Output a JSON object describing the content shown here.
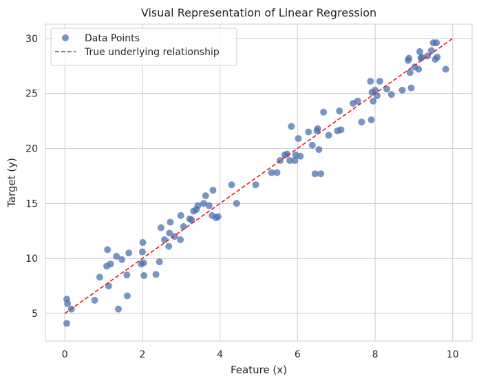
{
  "chart_data": {
    "type": "scatter",
    "title": "Visual Representation of Linear Regression",
    "xlabel": "Feature (x)",
    "ylabel": "Target (y)",
    "xlim": [
      -0.5,
      10.5
    ],
    "ylim": [
      2.5,
      31.3
    ],
    "xticks": [
      0,
      2,
      4,
      6,
      8,
      10
    ],
    "yticks": [
      5,
      10,
      15,
      20,
      25,
      30
    ],
    "grid": true,
    "legend_position": "top-left",
    "series": [
      {
        "name": "Data Points",
        "kind": "scatter",
        "color": "#4c72b0",
        "points": [
          [
            0.05,
            4.1
          ],
          [
            0.05,
            6.3
          ],
          [
            0.07,
            5.9
          ],
          [
            0.17,
            5.4
          ],
          [
            0.77,
            6.2
          ],
          [
            0.9,
            8.3
          ],
          [
            1.08,
            9.3
          ],
          [
            1.1,
            10.8
          ],
          [
            1.13,
            7.5
          ],
          [
            1.18,
            9.5
          ],
          [
            1.33,
            10.2
          ],
          [
            1.38,
            5.4
          ],
          [
            1.47,
            9.9
          ],
          [
            1.6,
            8.5
          ],
          [
            1.61,
            6.6
          ],
          [
            1.65,
            10.5
          ],
          [
            1.97,
            9.5
          ],
          [
            2.0,
            10.6
          ],
          [
            2.01,
            11.45
          ],
          [
            2.03,
            9.6
          ],
          [
            2.04,
            8.45
          ],
          [
            2.35,
            8.55
          ],
          [
            2.44,
            9.7
          ],
          [
            2.48,
            12.8
          ],
          [
            2.57,
            11.7
          ],
          [
            2.68,
            11.1
          ],
          [
            2.7,
            12.3
          ],
          [
            2.72,
            13.3
          ],
          [
            2.83,
            12.0
          ],
          [
            2.98,
            11.7
          ],
          [
            2.99,
            13.9
          ],
          [
            3.06,
            12.9
          ],
          [
            3.22,
            13.6
          ],
          [
            3.27,
            13.5
          ],
          [
            3.32,
            14.3
          ],
          [
            3.39,
            14.45
          ],
          [
            3.43,
            14.8
          ],
          [
            3.58,
            15.0
          ],
          [
            3.63,
            15.7
          ],
          [
            3.72,
            14.8
          ],
          [
            3.8,
            13.9
          ],
          [
            3.82,
            16.2
          ],
          [
            3.9,
            13.7
          ],
          [
            3.95,
            13.8
          ],
          [
            4.3,
            16.7
          ],
          [
            4.43,
            15.0
          ],
          [
            4.92,
            16.7
          ],
          [
            5.33,
            17.8
          ],
          [
            5.47,
            17.8
          ],
          [
            5.55,
            18.9
          ],
          [
            5.67,
            19.4
          ],
          [
            5.73,
            19.5
          ],
          [
            5.8,
            18.9
          ],
          [
            5.84,
            22.0
          ],
          [
            5.93,
            18.9
          ],
          [
            5.95,
            19.4
          ],
          [
            6.02,
            20.9
          ],
          [
            6.07,
            19.3
          ],
          [
            6.28,
            21.5
          ],
          [
            6.38,
            20.3
          ],
          [
            6.45,
            17.7
          ],
          [
            6.5,
            21.6
          ],
          [
            6.52,
            21.8
          ],
          [
            6.55,
            19.9
          ],
          [
            6.6,
            17.7
          ],
          [
            6.67,
            23.3
          ],
          [
            6.8,
            21.2
          ],
          [
            7.03,
            21.6
          ],
          [
            7.08,
            23.4
          ],
          [
            7.12,
            21.7
          ],
          [
            7.43,
            24.1
          ],
          [
            7.55,
            24.3
          ],
          [
            7.65,
            22.4
          ],
          [
            7.88,
            26.1
          ],
          [
            7.9,
            22.6
          ],
          [
            7.92,
            25.1
          ],
          [
            7.95,
            24.3
          ],
          [
            8.0,
            25.3
          ],
          [
            8.05,
            24.8
          ],
          [
            8.12,
            26.1
          ],
          [
            8.3,
            25.4
          ],
          [
            8.42,
            24.9
          ],
          [
            8.7,
            25.3
          ],
          [
            8.85,
            28.0
          ],
          [
            8.87,
            28.2
          ],
          [
            8.9,
            26.9
          ],
          [
            8.93,
            25.5
          ],
          [
            9.02,
            27.4
          ],
          [
            9.12,
            27.2
          ],
          [
            9.15,
            28.8
          ],
          [
            9.18,
            28.2
          ],
          [
            9.2,
            28.3
          ],
          [
            9.35,
            28.4
          ],
          [
            9.45,
            28.9
          ],
          [
            9.5,
            29.6
          ],
          [
            9.55,
            28.1
          ],
          [
            9.6,
            28.3
          ],
          [
            9.58,
            29.6
          ],
          [
            9.82,
            27.2
          ]
        ]
      },
      {
        "name": "True underlying relationship",
        "kind": "line",
        "color": "#e41a1c",
        "dashed": true,
        "points": [
          [
            0,
            5.0
          ],
          [
            10,
            30.0
          ]
        ]
      }
    ]
  }
}
